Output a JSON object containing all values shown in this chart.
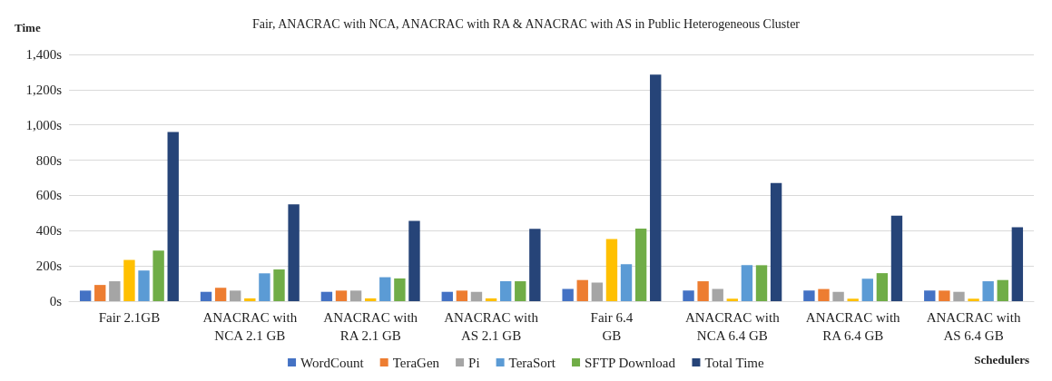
{
  "chart_data": {
    "type": "bar",
    "title": "Fair, ANACRAC with NCA, ANACRAC with RA & ANACRAC with AS in Public Heterogeneous Cluster",
    "xlabel": "Schedulers",
    "ylabel": "Time",
    "categories": [
      "Fair 2.1GB",
      "ANACRAC with NCA 2.1 GB",
      "ANACRAC with RA 2.1 GB",
      "ANACRAC with AS 2.1 GB",
      "Fair 6.4 GB",
      "ANACRAC with NCA 6.4 GB",
      "ANACRAC with RA 6.4 GB",
      "ANACRAC with AS 6.4 GB"
    ],
    "series": [
      {
        "name": "WordCount",
        "color": "#4472c4",
        "values": [
          60,
          53,
          53,
          53,
          69,
          60,
          60,
          60
        ]
      },
      {
        "name": "TeraGen",
        "color": "#ed7d31",
        "values": [
          92,
          76,
          60,
          60,
          120,
          113,
          69,
          60
        ]
      },
      {
        "name": "Pi",
        "color": "#a5a5a5",
        "values": [
          113,
          60,
          60,
          53,
          106,
          69,
          53,
          53
        ]
      },
      {
        "color": "#ffc000",
        "values": [
          234,
          16,
          16,
          16,
          352,
          14,
          14,
          14
        ]
      },
      {
        "name": "TeraSort",
        "color": "#5b9bd5",
        "values": [
          174,
          158,
          136,
          113,
          210,
          204,
          127,
          113
        ]
      },
      {
        "name": "SFTP Download",
        "color": "#70ad47",
        "values": [
          287,
          180,
          129,
          113,
          412,
          204,
          159,
          120
        ]
      },
      {
        "name": "Total Time",
        "color": "#264478",
        "values": [
          960,
          550,
          455,
          410,
          1285,
          670,
          485,
          420
        ]
      }
    ],
    "ylim": [
      0,
      1400
    ],
    "yticks": [
      {
        "value": 0,
        "label": "0s"
      },
      {
        "value": 200,
        "label": "200s"
      },
      {
        "value": 400,
        "label": "400s"
      },
      {
        "value": 600,
        "label": "600s"
      },
      {
        "value": 800,
        "label": "800s"
      },
      {
        "value": 1000,
        "label": "1,000s"
      },
      {
        "value": 1200,
        "label": "1,200s"
      },
      {
        "value": 1400,
        "label": "1,400s"
      }
    ],
    "grid": "y",
    "legend": "bottom"
  }
}
